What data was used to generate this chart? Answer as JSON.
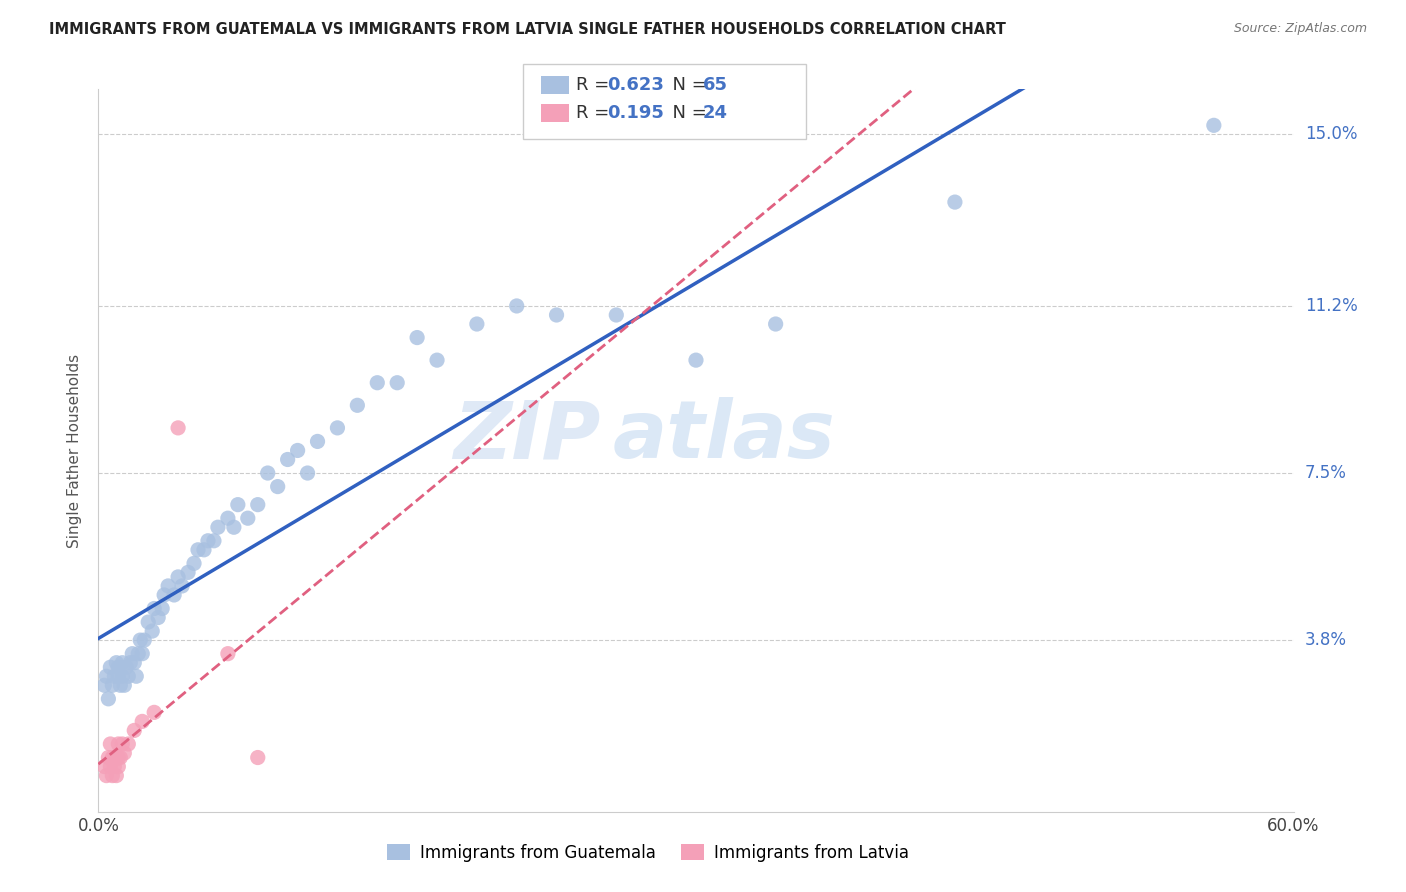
{
  "title": "IMMIGRANTS FROM GUATEMALA VS IMMIGRANTS FROM LATVIA SINGLE FATHER HOUSEHOLDS CORRELATION CHART",
  "source": "Source: ZipAtlas.com",
  "ylabel": "Single Father Households",
  "watermark_zip": "ZIP",
  "watermark_atlas": "atlas",
  "xlim": [
    0.0,
    0.6
  ],
  "ylim": [
    0.0,
    0.16
  ],
  "xtick_positions": [
    0.0,
    0.1,
    0.2,
    0.3,
    0.4,
    0.5,
    0.6
  ],
  "xticklabels": [
    "0.0%",
    "",
    "",
    "",
    "",
    "",
    "60.0%"
  ],
  "ytick_positions": [
    0.038,
    0.075,
    0.112,
    0.15
  ],
  "ytick_labels": [
    "3.8%",
    "7.5%",
    "11.2%",
    "15.0%"
  ],
  "R_guatemala": 0.623,
  "N_guatemala": 65,
  "R_latvia": 0.195,
  "N_latvia": 24,
  "color_guatemala": "#a8c0e0",
  "color_latvia": "#f4a0b8",
  "trendline_guatemala_color": "#3060c0",
  "trendline_latvia_color": "#e06080",
  "trendline_latvia_dash": true,
  "legend_label_guatemala": "Immigrants from Guatemala",
  "legend_label_latvia": "Immigrants from Latvia",
  "guatemala_x": [
    0.003,
    0.004,
    0.005,
    0.006,
    0.007,
    0.008,
    0.009,
    0.01,
    0.01,
    0.011,
    0.012,
    0.012,
    0.013,
    0.014,
    0.015,
    0.016,
    0.017,
    0.018,
    0.019,
    0.02,
    0.021,
    0.022,
    0.023,
    0.025,
    0.027,
    0.028,
    0.03,
    0.032,
    0.033,
    0.035,
    0.038,
    0.04,
    0.042,
    0.045,
    0.048,
    0.05,
    0.053,
    0.055,
    0.058,
    0.06,
    0.065,
    0.068,
    0.07,
    0.075,
    0.08,
    0.085,
    0.09,
    0.095,
    0.1,
    0.105,
    0.11,
    0.12,
    0.13,
    0.14,
    0.15,
    0.16,
    0.17,
    0.19,
    0.21,
    0.23,
    0.26,
    0.3,
    0.34,
    0.43,
    0.56
  ],
  "guatemala_y": [
    0.028,
    0.03,
    0.025,
    0.032,
    0.028,
    0.03,
    0.033,
    0.03,
    0.032,
    0.028,
    0.03,
    0.033,
    0.028,
    0.032,
    0.03,
    0.033,
    0.035,
    0.033,
    0.03,
    0.035,
    0.038,
    0.035,
    0.038,
    0.042,
    0.04,
    0.045,
    0.043,
    0.045,
    0.048,
    0.05,
    0.048,
    0.052,
    0.05,
    0.053,
    0.055,
    0.058,
    0.058,
    0.06,
    0.06,
    0.063,
    0.065,
    0.063,
    0.068,
    0.065,
    0.068,
    0.075,
    0.072,
    0.078,
    0.08,
    0.075,
    0.082,
    0.085,
    0.09,
    0.095,
    0.095,
    0.105,
    0.1,
    0.108,
    0.112,
    0.11,
    0.11,
    0.1,
    0.108,
    0.135,
    0.152
  ],
  "latvia_x": [
    0.003,
    0.004,
    0.005,
    0.006,
    0.006,
    0.007,
    0.007,
    0.008,
    0.008,
    0.009,
    0.009,
    0.01,
    0.01,
    0.01,
    0.011,
    0.012,
    0.013,
    0.015,
    0.018,
    0.022,
    0.028,
    0.04,
    0.065,
    0.08
  ],
  "latvia_y": [
    0.01,
    0.008,
    0.012,
    0.015,
    0.01,
    0.008,
    0.012,
    0.01,
    0.012,
    0.008,
    0.012,
    0.01,
    0.012,
    0.015,
    0.012,
    0.015,
    0.013,
    0.015,
    0.018,
    0.02,
    0.022,
    0.085,
    0.035,
    0.012
  ]
}
